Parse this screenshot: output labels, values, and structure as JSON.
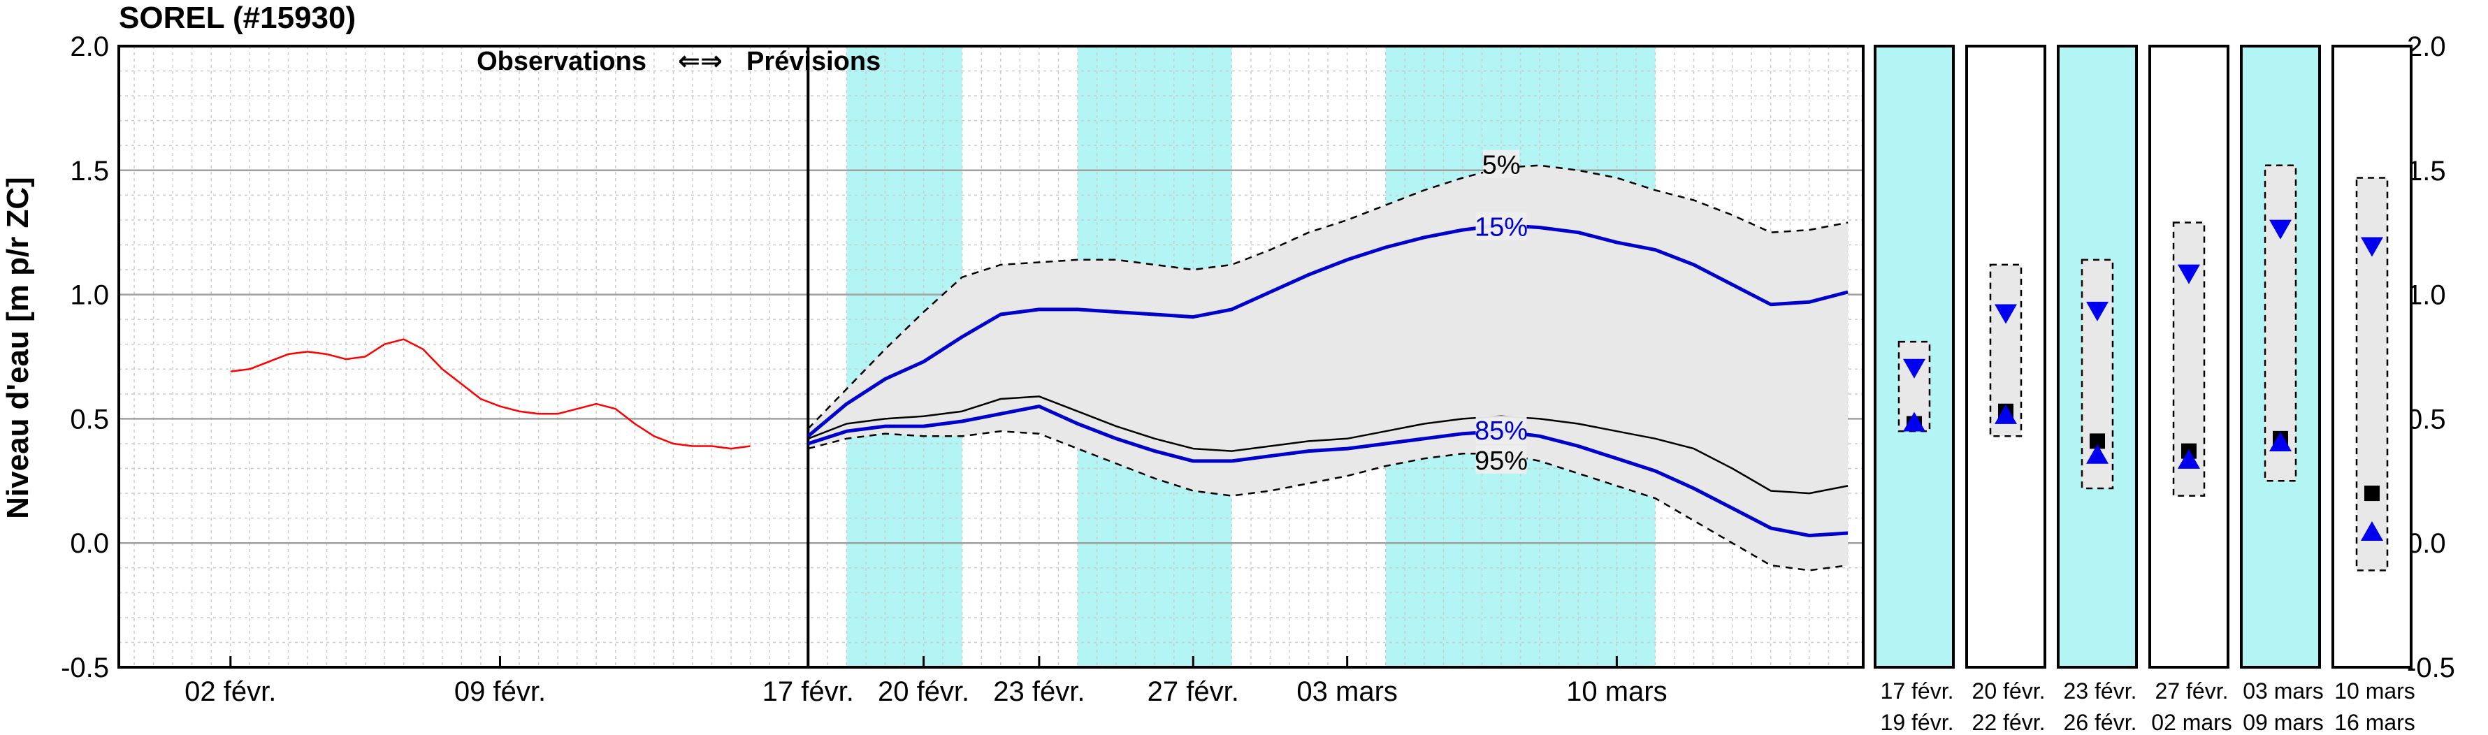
{
  "chart_data": {
    "type": "line",
    "title": "SOREL (#15930)",
    "ylabel": "Niveau d'eau [m p/r ZC]",
    "ylim": [
      -0.5,
      2.0
    ],
    "yticks": [
      "2.0",
      "1.5",
      "1.0",
      "0.5",
      "0.0",
      "-0.5"
    ],
    "grid": true,
    "headers": {
      "observations": "Observations",
      "arrows": "⇐⇒",
      "forecast": "Prévisions"
    },
    "xticks": [
      {
        "day": 0,
        "label": "02 févr."
      },
      {
        "day": 7,
        "label": "09 févr."
      },
      {
        "day": 15,
        "label": "17 févr."
      },
      {
        "day": 18,
        "label": "20 févr."
      },
      {
        "day": 21,
        "label": "23 févr."
      },
      {
        "day": 25,
        "label": "27 févr."
      },
      {
        "day": 29,
        "label": "03 mars"
      },
      {
        "day": 36,
        "label": "10 mars"
      }
    ],
    "forecast_start_day": 15,
    "highlight_periods": [
      [
        16,
        19
      ],
      [
        22,
        26
      ],
      [
        30,
        37
      ]
    ],
    "series": [
      {
        "name": "Observations",
        "color": "#ff0000",
        "x": [
          0,
          0.5,
          1,
          1.5,
          2,
          2.5,
          3,
          3.5,
          4,
          4.5,
          5,
          5.5,
          6,
          6.5,
          7,
          7.5,
          8,
          8.5,
          9,
          9.5,
          10,
          10.5,
          11,
          11.5,
          12,
          12.5,
          13,
          13.5
        ],
        "y": [
          0.69,
          0.7,
          0.73,
          0.76,
          0.77,
          0.76,
          0.74,
          0.75,
          0.8,
          0.82,
          0.78,
          0.7,
          0.64,
          0.58,
          0.55,
          0.53,
          0.52,
          0.52,
          0.54,
          0.56,
          0.54,
          0.48,
          0.43,
          0.4,
          0.39,
          0.39,
          0.38,
          0.39
        ]
      },
      {
        "name": "5%",
        "color": "#000000",
        "dash": true,
        "x": [
          15,
          16,
          17,
          18,
          19,
          20,
          21,
          22,
          23,
          24,
          25,
          26,
          27,
          28,
          29,
          30,
          31,
          32,
          33,
          34,
          35,
          36,
          37,
          38,
          39,
          40,
          41,
          42
        ],
        "y": [
          0.46,
          0.62,
          0.78,
          0.93,
          1.07,
          1.12,
          1.13,
          1.14,
          1.14,
          1.12,
          1.1,
          1.12,
          1.18,
          1.25,
          1.3,
          1.36,
          1.42,
          1.47,
          1.51,
          1.52,
          1.5,
          1.47,
          1.42,
          1.38,
          1.32,
          1.25,
          1.26,
          1.29
        ]
      },
      {
        "name": "15%",
        "color": "#0000cc",
        "x": [
          15,
          16,
          17,
          18,
          19,
          20,
          21,
          22,
          23,
          24,
          25,
          26,
          27,
          28,
          29,
          30,
          31,
          32,
          33,
          34,
          35,
          36,
          37,
          38,
          39,
          40,
          41,
          42
        ],
        "y": [
          0.43,
          0.56,
          0.66,
          0.73,
          0.83,
          0.92,
          0.94,
          0.94,
          0.93,
          0.92,
          0.91,
          0.94,
          1.01,
          1.08,
          1.14,
          1.19,
          1.23,
          1.26,
          1.28,
          1.27,
          1.25,
          1.21,
          1.18,
          1.12,
          1.04,
          0.96,
          0.97,
          1.01
        ]
      },
      {
        "name": "Médiane",
        "color": "#000000",
        "thin": true,
        "x": [
          15,
          16,
          17,
          18,
          19,
          20,
          21,
          22,
          23,
          24,
          25,
          26,
          27,
          28,
          29,
          30,
          31,
          32,
          33,
          34,
          35,
          36,
          37,
          38,
          39,
          40,
          41,
          42
        ],
        "y": [
          0.42,
          0.48,
          0.5,
          0.51,
          0.53,
          0.58,
          0.59,
          0.53,
          0.47,
          0.42,
          0.38,
          0.37,
          0.39,
          0.41,
          0.42,
          0.45,
          0.48,
          0.5,
          0.51,
          0.5,
          0.48,
          0.45,
          0.42,
          0.38,
          0.3,
          0.21,
          0.2,
          0.23
        ]
      },
      {
        "name": "85%",
        "color": "#0000cc",
        "x": [
          15,
          16,
          17,
          18,
          19,
          20,
          21,
          22,
          23,
          24,
          25,
          26,
          27,
          28,
          29,
          30,
          31,
          32,
          33,
          34,
          35,
          36,
          37,
          38,
          39,
          40,
          41,
          42
        ],
        "y": [
          0.4,
          0.45,
          0.47,
          0.47,
          0.49,
          0.52,
          0.55,
          0.48,
          0.42,
          0.37,
          0.33,
          0.33,
          0.35,
          0.37,
          0.38,
          0.4,
          0.42,
          0.44,
          0.45,
          0.43,
          0.39,
          0.34,
          0.29,
          0.22,
          0.14,
          0.06,
          0.03,
          0.04
        ]
      },
      {
        "name": "95%",
        "color": "#000000",
        "dash": true,
        "x": [
          15,
          16,
          17,
          18,
          19,
          20,
          21,
          22,
          23,
          24,
          25,
          26,
          27,
          28,
          29,
          30,
          31,
          32,
          33,
          34,
          35,
          36,
          37,
          38,
          39,
          40,
          41,
          42
        ],
        "y": [
          0.38,
          0.42,
          0.44,
          0.43,
          0.43,
          0.45,
          0.44,
          0.38,
          0.32,
          0.26,
          0.21,
          0.19,
          0.21,
          0.24,
          0.27,
          0.31,
          0.34,
          0.36,
          0.36,
          0.33,
          0.28,
          0.23,
          0.18,
          0.09,
          0.0,
          -0.09,
          -0.11,
          -0.09
        ]
      }
    ],
    "percentile_labels": [
      {
        "text": "5%",
        "day": 33,
        "y": 1.52,
        "color": "#000000"
      },
      {
        "text": "15%",
        "day": 33,
        "y": 1.27,
        "color": "#0000cc"
      },
      {
        "text": "85%",
        "day": 33,
        "y": 0.45,
        "color": "#0000cc"
      },
      {
        "text": "95%",
        "day": 33,
        "y": 0.33,
        "color": "#000000"
      }
    ],
    "period_panels": [
      {
        "label1": "17  févr.",
        "label2": "19  févr.",
        "cyan": true,
        "box": [
          0.45,
          0.81
        ],
        "up": 0.48,
        "down": 0.71,
        "median": 0.48
      },
      {
        "label1": "20  févr.",
        "label2": "22  févr.",
        "cyan": false,
        "box": [
          0.43,
          1.12
        ],
        "up": 0.51,
        "down": 0.93,
        "median": 0.53
      },
      {
        "label1": "23  févr.",
        "label2": "26  févr.",
        "cyan": true,
        "box": [
          0.22,
          1.14
        ],
        "up": 0.35,
        "down": 0.94,
        "median": 0.41
      },
      {
        "label1": "27  févr.",
        "label2": "02  mars",
        "cyan": false,
        "box": [
          0.19,
          1.29
        ],
        "up": 0.33,
        "down": 1.09,
        "median": 0.37
      },
      {
        "label1": "03  mars",
        "label2": "09  mars",
        "cyan": true,
        "box": [
          0.25,
          1.52
        ],
        "up": 0.4,
        "down": 1.27,
        "median": 0.42
      },
      {
        "label1": "10  mars",
        "label2": "16  mars",
        "cyan": false,
        "box": [
          -0.11,
          1.47
        ],
        "up": 0.04,
        "down": 1.2,
        "median": 0.2
      }
    ],
    "colors": {
      "highlight": "#b3f5f5",
      "band": "#e8e8e8",
      "grid_major": "#a0a0a0",
      "grid_minor": "#cccccc"
    }
  }
}
